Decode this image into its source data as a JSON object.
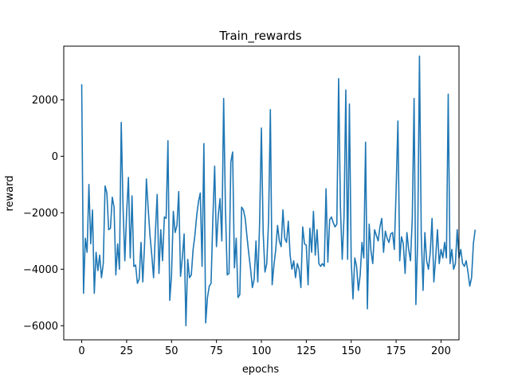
{
  "chart_data": {
    "type": "line",
    "title": "Train_rewards",
    "xlabel": "epochs",
    "ylabel": "reward",
    "xlim": [
      -10,
      210
    ],
    "ylim": [
      -6500,
      3900
    ],
    "x_ticks": [
      0,
      25,
      50,
      75,
      100,
      125,
      150,
      175,
      200
    ],
    "y_ticks": [
      -6000,
      -4000,
      -2000,
      0,
      2000
    ],
    "grid": false,
    "line_color": "#1f77b4",
    "series": [
      {
        "values": [
          2550,
          -4850,
          -2900,
          -3400,
          -1000,
          -3100,
          -1900,
          -4850,
          -3400,
          -4050,
          -3500,
          -4300,
          -3800,
          -1050,
          -1300,
          -2600,
          -2550,
          -1450,
          -1800,
          -4200,
          -3100,
          -4000,
          1200,
          -1800,
          -3700,
          -2000,
          -750,
          -3600,
          -1400,
          -3900,
          -3850,
          -4500,
          -4350,
          -3050,
          -4450,
          -3100,
          -800,
          -1850,
          -2800,
          -3500,
          -4300,
          -2700,
          -1350,
          -4150,
          -2600,
          -3700,
          -2150,
          -2200,
          550,
          -5100,
          -4200,
          -1950,
          -2700,
          -2450,
          -1250,
          -4250,
          -3600,
          -2750,
          -6000,
          -3650,
          -4300,
          -4200,
          -3300,
          -2800,
          -2100,
          -1600,
          -1300,
          -3900,
          450,
          -5900,
          -5000,
          -4600,
          -4500,
          -2200,
          -350,
          -3200,
          -2100,
          -1500,
          -3000,
          2050,
          -1850,
          -4200,
          -4150,
          -200,
          150,
          -3950,
          -2900,
          -5000,
          -4900,
          -1800,
          -1900,
          -2200,
          -2850,
          -3450,
          -4000,
          -4650,
          -4350,
          -3000,
          -4450,
          -2400,
          1000,
          -2700,
          -4100,
          -3800,
          -2300,
          1650,
          -4550,
          -3850,
          -3300,
          -2450,
          -3000,
          -3200,
          -1900,
          -2900,
          -3050,
          -2300,
          -3500,
          -4000,
          -3700,
          -4300,
          -3800,
          -4000,
          -4650,
          -2500,
          -3100,
          -3150,
          -4550,
          -2550,
          -3400,
          -1950,
          -3500,
          -2600,
          -3800,
          -3900,
          -3800,
          -3900,
          -1150,
          -3750,
          -2250,
          -2150,
          -2350,
          -2500,
          -2400,
          2750,
          -1800,
          -3650,
          -2150,
          2350,
          -3650,
          1850,
          -3700,
          -5050,
          -3600,
          -3900,
          -4750,
          -4200,
          -3050,
          -3600,
          500,
          -5400,
          -2400,
          -3350,
          -3800,
          -2600,
          -2800,
          -3000,
          -2500,
          -2200,
          -3400,
          -2650,
          -2900,
          -3050,
          -2750,
          -2700,
          -3300,
          -1200,
          1250,
          -3700,
          -2850,
          -3100,
          -4150,
          -2700,
          -3300,
          -3700,
          -2200,
          2050,
          -5250,
          -3000,
          3550,
          -2800,
          -4750,
          -2700,
          -3700,
          -4000,
          -3400,
          -2200,
          -4450,
          -3600,
          -2600,
          -3800,
          -3300,
          -3600,
          -3050,
          -3600,
          2200,
          -3800,
          -3300,
          -4000,
          -3800,
          -2600,
          -3600,
          -3300,
          -3800,
          -3900,
          -3700,
          -4100,
          -4600,
          -4300,
          -3100,
          -2600
        ]
      }
    ]
  }
}
